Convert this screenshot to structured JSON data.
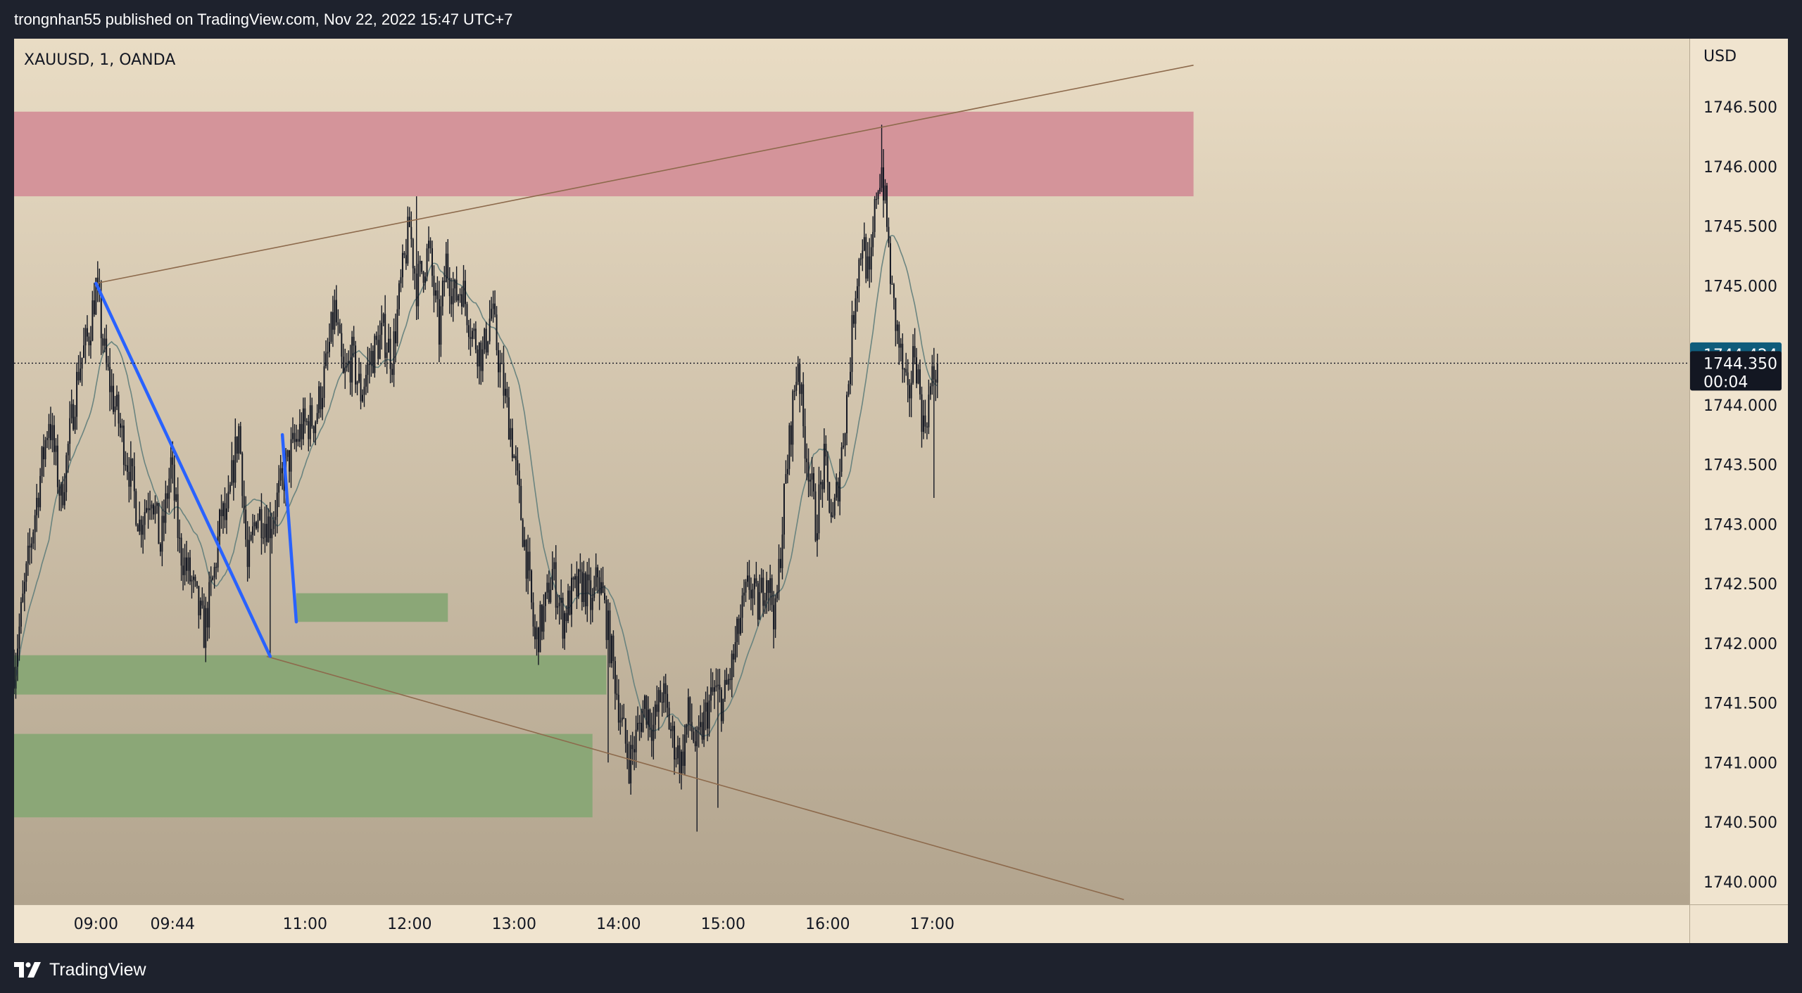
{
  "header": {
    "publisher_text": "trongnhan55 published on TradingView.com, Nov 22, 2022 15:47 UTC+7"
  },
  "footer": {
    "brand": "TradingView",
    "logo_icon": "tradingview-logo-icon"
  },
  "colors": {
    "background_top": "#e9dcc4",
    "background_bottom": "#b2a48e",
    "supply_zone": "#d4949a",
    "demand_zone": "#8ba777",
    "trendline": "#8d6a4c",
    "impulse_line": "#2962ff",
    "candle": "#131722",
    "moving_average": "#5f7d7b",
    "last_price_badge": "#0f5c7b",
    "current_price_badge": "#131722"
  },
  "chart_data": {
    "type": "candlestick",
    "symbol_label": "XAUUSD, 1, OANDA",
    "currency_label": "USD",
    "timeframe": "1 minute",
    "x_ticks": [
      "09:00",
      "09:44",
      "11:00",
      "12:00",
      "13:00",
      "14:00",
      "15:00",
      "16:00",
      "17:00"
    ],
    "y_ticks": [
      "1746.500",
      "1746.000",
      "1745.500",
      "1745.000",
      "1744.000",
      "1743.500",
      "1743.000",
      "1742.500",
      "1742.000",
      "1741.500",
      "1741.000",
      "1740.500",
      "1740.000"
    ],
    "ylim": [
      1739.85,
      1747.1
    ],
    "last_price_badge": "1744.424",
    "current_price": "1744.350",
    "countdown": "00:04",
    "price_line": 1744.35,
    "candle_anchors": [
      [
        "08:13",
        1741.8
      ],
      [
        "08:25",
        1743.1
      ],
      [
        "08:33",
        1743.9
      ],
      [
        "08:40",
        1743.2
      ],
      [
        "08:50",
        1744.3
      ],
      [
        "08:56",
        1744.6
      ],
      [
        "09:00",
        1745.0
      ],
      [
        "09:06",
        1744.3
      ],
      [
        "09:14",
        1743.8
      ],
      [
        "09:20",
        1743.4
      ],
      [
        "09:25",
        1743.0
      ],
      [
        "09:32",
        1743.3
      ],
      [
        "09:37",
        1742.8
      ],
      [
        "09:43",
        1743.5
      ],
      [
        "09:48",
        1742.8
      ],
      [
        "09:55",
        1742.5
      ],
      [
        "10:02",
        1742.1
      ],
      [
        "10:08",
        1742.6
      ],
      [
        "10:12",
        1743.1
      ],
      [
        "10:15",
        1743.0
      ],
      [
        "10:19",
        1743.5
      ],
      [
        "10:22",
        1743.8
      ],
      [
        "10:24",
        1743.4
      ],
      [
        "10:27",
        1742.6
      ],
      [
        "10:32",
        1743.1
      ],
      [
        "10:40",
        1743.0
      ],
      [
        "10:46",
        1743.3
      ],
      [
        "10:52",
        1743.6
      ],
      [
        "10:58",
        1743.8
      ],
      [
        "11:06",
        1743.9
      ],
      [
        "11:12",
        1744.3
      ],
      [
        "11:17",
        1744.8
      ],
      [
        "11:22",
        1744.2
      ],
      [
        "11:27",
        1744.4
      ],
      [
        "11:32",
        1744.1
      ],
      [
        "11:38",
        1744.4
      ],
      [
        "11:45",
        1744.6
      ],
      [
        "11:50",
        1744.4
      ],
      [
        "11:55",
        1745.0
      ],
      [
        "12:00",
        1745.5
      ],
      [
        "12:04",
        1745.0
      ],
      [
        "12:11",
        1745.3
      ],
      [
        "12:17",
        1744.6
      ],
      [
        "12:21",
        1745.2
      ],
      [
        "12:26",
        1744.9
      ],
      [
        "12:30",
        1745.0
      ],
      [
        "12:36",
        1744.6
      ],
      [
        "12:42",
        1744.4
      ],
      [
        "12:47",
        1744.8
      ],
      [
        "12:52",
        1744.3
      ],
      [
        "12:58",
        1743.8
      ],
      [
        "13:03",
        1743.2
      ],
      [
        "13:08",
        1742.6
      ],
      [
        "13:12",
        1742.0
      ],
      [
        "13:18",
        1742.3
      ],
      [
        "13:22",
        1742.6
      ],
      [
        "13:28",
        1742.2
      ],
      [
        "13:33",
        1742.4
      ],
      [
        "13:40",
        1742.5
      ],
      [
        "13:45",
        1742.3
      ],
      [
        "13:48",
        1742.6
      ],
      [
        "13:53",
        1742.2
      ],
      [
        "13:58",
        1741.7
      ],
      [
        "14:02",
        1741.3
      ],
      [
        "14:06",
        1741.0
      ],
      [
        "14:10",
        1741.2
      ],
      [
        "14:15",
        1741.5
      ],
      [
        "14:20",
        1741.3
      ],
      [
        "14:25",
        1741.6
      ],
      [
        "14:31",
        1741.2
      ],
      [
        "14:36",
        1741.0
      ],
      [
        "14:40",
        1741.4
      ],
      [
        "14:45",
        1741.1
      ],
      [
        "14:50",
        1741.4
      ],
      [
        "14:55",
        1741.6
      ],
      [
        "15:00",
        1741.5
      ],
      [
        "15:05",
        1741.8
      ],
      [
        "15:10",
        1742.2
      ],
      [
        "15:15",
        1742.5
      ],
      [
        "15:20",
        1742.3
      ],
      [
        "15:25",
        1742.6
      ],
      [
        "15:30",
        1742.2
      ],
      [
        "15:35",
        1743.2
      ],
      [
        "15:40",
        1744.0
      ],
      [
        "15:43",
        1744.4
      ],
      [
        "15:46",
        1743.8
      ],
      [
        "15:50",
        1743.4
      ],
      [
        "15:53",
        1743.0
      ],
      [
        "15:58",
        1743.5
      ],
      [
        "16:03",
        1743.0
      ],
      [
        "16:08",
        1743.6
      ],
      [
        "16:12",
        1744.2
      ],
      [
        "16:16",
        1745.0
      ],
      [
        "16:20",
        1745.4
      ],
      [
        "16:24",
        1745.0
      ],
      [
        "16:28",
        1745.8
      ],
      [
        "16:31",
        1746.0
      ],
      [
        "16:34",
        1745.5
      ],
      [
        "16:37",
        1744.9
      ],
      [
        "16:42",
        1744.4
      ],
      [
        "16:46",
        1744.0
      ],
      [
        "16:50",
        1744.5
      ],
      [
        "16:55",
        1743.8
      ],
      [
        "17:00",
        1744.2
      ],
      [
        "17:03",
        1744.35
      ]
    ],
    "candle_extremes": [
      [
        "09:00",
        "high",
        1745.02
      ],
      [
        "10:40",
        "low",
        1741.89
      ],
      [
        "12:04",
        "high",
        1745.75
      ],
      [
        "13:54",
        "low",
        1741.0
      ],
      [
        "14:06",
        "low",
        1740.82
      ],
      [
        "14:45",
        "low",
        1740.42
      ],
      [
        "14:57",
        "low",
        1740.62
      ],
      [
        "16:31",
        "high",
        1746.35
      ],
      [
        "17:01",
        "low",
        1743.22
      ]
    ],
    "moving_average_period": 21,
    "zones": [
      {
        "kind": "supply",
        "from": "08:13",
        "to": "19:30",
        "top": 1746.46,
        "bottom": 1745.75
      },
      {
        "kind": "demand",
        "from": "10:55",
        "to": "12:22",
        "top": 1742.42,
        "bottom": 1742.18
      },
      {
        "kind": "demand",
        "from": "08:13",
        "to": "13:53",
        "top": 1741.9,
        "bottom": 1741.57
      },
      {
        "kind": "demand",
        "from": "08:13",
        "to": "13:45",
        "top": 1741.24,
        "bottom": 1740.54
      }
    ],
    "trendlines": [
      {
        "from": [
          "09:00",
          1745.02
        ],
        "to": [
          "19:30",
          1746.85
        ]
      },
      {
        "from": [
          "10:38",
          1741.89
        ],
        "to": [
          "18:50",
          1739.85
        ]
      }
    ],
    "impulse_lines": [
      {
        "from": [
          "09:00",
          1745.02
        ],
        "to": [
          "10:40",
          1741.89
        ]
      },
      {
        "from": [
          "10:47",
          1743.75
        ],
        "to": [
          "10:55",
          1742.18
        ]
      }
    ]
  }
}
